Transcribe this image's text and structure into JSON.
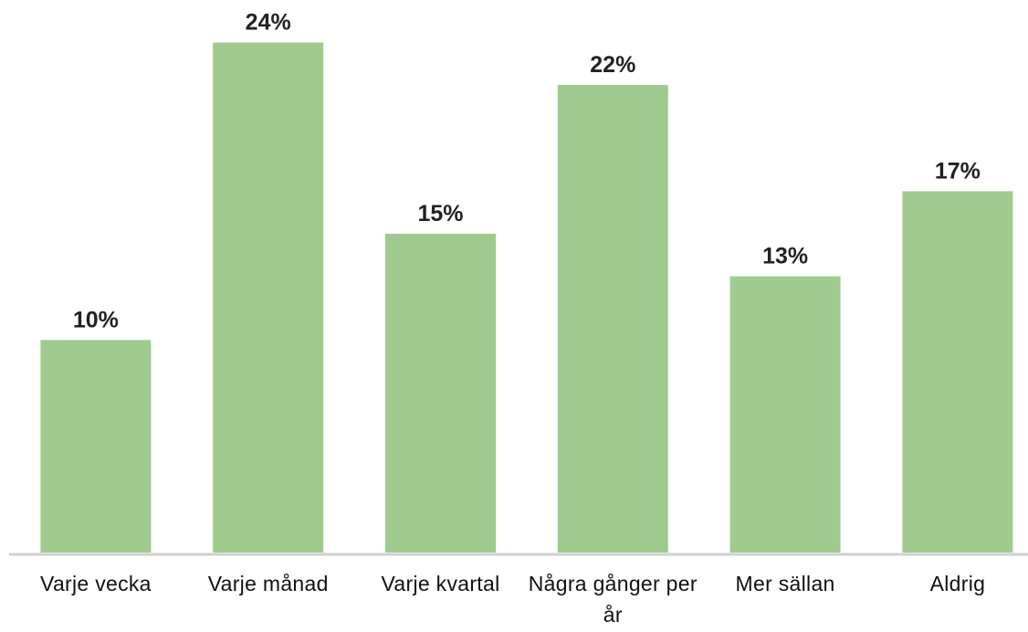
{
  "chart_data": {
    "type": "bar",
    "categories": [
      "Varje vecka",
      "Varje månad",
      "Varje kvartal",
      "Några gånger per år",
      "Mer sällan",
      "Aldrig"
    ],
    "values": [
      10,
      24,
      15,
      22,
      13,
      17
    ],
    "value_labels": [
      "10%",
      "24%",
      "15%",
      "22%",
      "13%",
      "17%"
    ],
    "color": "#9fcb8f",
    "ylim": [
      0,
      26
    ]
  }
}
